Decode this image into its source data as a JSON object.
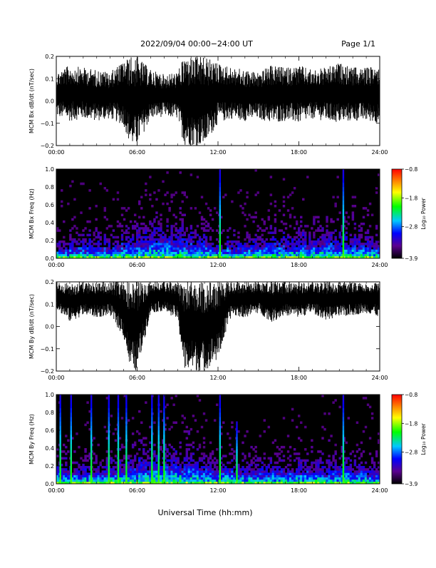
{
  "header": {
    "title": "2022/09/04  00:00−24:00 UT",
    "page": "Page 1/1"
  },
  "footer": {
    "xlabel": "Universal Time (hh:mm)"
  },
  "chart_data": [
    {
      "type": "line",
      "title": "",
      "xlabel": "",
      "ylabel": "MCM Bx dB/dt (nT/sec)",
      "xlim": [
        0,
        24
      ],
      "ylim": [
        -0.2,
        0.2
      ],
      "x_ticks": [
        "00:00",
        "06:00",
        "12:00",
        "18:00",
        "24:00"
      ],
      "y_ticks": [
        "−0.2",
        "−0.1",
        "0.0",
        "0.1",
        "0.2"
      ],
      "grid": false,
      "series": [
        {
          "color": "#000000",
          "x": [
            0,
            1,
            2,
            3,
            4,
            5,
            5.5,
            6,
            7,
            8,
            9,
            9.5,
            10,
            10.5,
            11,
            12,
            13,
            14,
            15,
            16,
            17,
            18,
            19,
            20,
            21,
            22,
            23,
            24
          ],
          "envelope_min": [
            -0.07,
            -0.09,
            -0.08,
            -0.09,
            -0.08,
            -0.11,
            -0.2,
            -0.2,
            -0.08,
            -0.07,
            -0.08,
            -0.2,
            -0.2,
            -0.2,
            -0.2,
            -0.1,
            -0.08,
            -0.09,
            -0.08,
            -0.1,
            -0.09,
            -0.1,
            -0.08,
            -0.09,
            -0.1,
            -0.09,
            -0.09,
            -0.1
          ],
          "envelope_max": [
            0.13,
            0.16,
            0.15,
            0.14,
            0.13,
            0.18,
            0.2,
            0.2,
            0.14,
            0.12,
            0.13,
            0.2,
            0.2,
            0.2,
            0.2,
            0.17,
            0.15,
            0.14,
            0.13,
            0.16,
            0.15,
            0.16,
            0.14,
            0.15,
            0.17,
            0.15,
            0.15,
            0.16
          ]
        }
      ]
    },
    {
      "type": "heatmap",
      "title": "",
      "xlabel": "",
      "ylabel": "MCM Bx Freq (Hz)",
      "xlim": [
        0,
        24
      ],
      "ylim": [
        0,
        1.0
      ],
      "x_ticks": [
        "00:00",
        "06:00",
        "12:00",
        "18:00",
        "24:00"
      ],
      "y_ticks": [
        "0.0",
        "0.2",
        "0.4",
        "0.6",
        "0.8",
        "1.0"
      ],
      "colorbar": {
        "label": "Log₁₀ Power",
        "range": [
          -3.9,
          -0.8
        ],
        "ticks": [
          "−0.8",
          "−1.8",
          "−2.8",
          "−3.9"
        ]
      },
      "activity_hours": [
        0,
        2,
        4,
        5.5,
        9.5,
        11,
        12,
        14,
        16,
        18,
        20,
        22,
        24
      ],
      "activity_extent_hz": [
        0.2,
        0.25,
        0.25,
        0.35,
        0.4,
        0.3,
        0.25,
        0.25,
        0.3,
        0.35,
        0.35,
        0.3,
        0.25
      ],
      "spikes": [
        {
          "hour": 12.15,
          "max_hz": 1.0
        },
        {
          "hour": 21.3,
          "max_hz": 1.0
        }
      ]
    },
    {
      "type": "line",
      "title": "",
      "xlabel": "",
      "ylabel": "MCM By dB/dt (nT/sec)",
      "xlim": [
        0,
        24
      ],
      "ylim": [
        -0.2,
        0.2
      ],
      "x_ticks": [
        "00:00",
        "06:00",
        "12:00",
        "18:00",
        "24:00"
      ],
      "y_ticks": [
        "−0.2",
        "−0.1",
        "0.0",
        "0.1",
        "0.2"
      ],
      "grid": false,
      "series": [
        {
          "color": "#000000",
          "x": [
            0,
            1,
            2,
            3,
            4,
            5,
            5.5,
            6,
            7,
            8,
            9,
            9.5,
            10,
            10.5,
            11,
            12,
            13,
            14,
            15,
            16,
            17,
            18,
            19,
            20,
            21,
            22,
            23,
            24
          ],
          "envelope_min": [
            0.08,
            0.02,
            0.05,
            0.04,
            0.05,
            -0.05,
            -0.2,
            -0.2,
            0.06,
            0.07,
            0.03,
            -0.2,
            -0.2,
            -0.2,
            -0.2,
            -0.15,
            0.05,
            0.04,
            0.06,
            0.02,
            0.05,
            0.04,
            0.06,
            0.03,
            0.04,
            0.05,
            0.06,
            0.04
          ],
          "envelope_max": [
            0.2,
            0.2,
            0.2,
            0.2,
            0.2,
            0.2,
            0.2,
            0.2,
            0.2,
            0.2,
            0.2,
            0.2,
            0.2,
            0.2,
            0.2,
            0.2,
            0.2,
            0.2,
            0.2,
            0.2,
            0.2,
            0.2,
            0.2,
            0.2,
            0.2,
            0.2,
            0.2,
            0.2
          ]
        }
      ]
    },
    {
      "type": "heatmap",
      "title": "",
      "xlabel": "",
      "ylabel": "MCM By Freq (Hz)",
      "xlim": [
        0,
        24
      ],
      "ylim": [
        0,
        1.0
      ],
      "x_ticks": [
        "00:00",
        "06:00",
        "12:00",
        "18:00",
        "24:00"
      ],
      "y_ticks": [
        "0.0",
        "0.2",
        "0.4",
        "0.6",
        "0.8",
        "1.0"
      ],
      "colorbar": {
        "label": "Log₁₀ Power",
        "range": [
          -3.9,
          -0.8
        ],
        "ticks": [
          "−0.8",
          "−1.8",
          "−2.8",
          "−3.9"
        ]
      },
      "activity_hours": [
        0,
        2,
        4,
        5.5,
        9.5,
        11,
        12,
        14,
        16,
        18,
        20,
        22,
        24
      ],
      "activity_extent_hz": [
        0.3,
        0.25,
        0.3,
        0.4,
        0.45,
        0.3,
        0.3,
        0.25,
        0.3,
        0.3,
        0.3,
        0.3,
        0.25
      ],
      "spikes": [
        {
          "hour": 0.3,
          "max_hz": 1.0
        },
        {
          "hour": 1.1,
          "max_hz": 1.0
        },
        {
          "hour": 2.6,
          "max_hz": 1.0
        },
        {
          "hour": 3.9,
          "max_hz": 1.0
        },
        {
          "hour": 4.6,
          "max_hz": 1.0
        },
        {
          "hour": 5.2,
          "max_hz": 1.0
        },
        {
          "hour": 7.1,
          "max_hz": 1.0
        },
        {
          "hour": 7.6,
          "max_hz": 1.0
        },
        {
          "hour": 8.0,
          "max_hz": 1.0
        },
        {
          "hour": 12.15,
          "max_hz": 1.0
        },
        {
          "hour": 13.4,
          "max_hz": 0.7
        },
        {
          "hour": 21.3,
          "max_hz": 1.0
        }
      ]
    }
  ]
}
